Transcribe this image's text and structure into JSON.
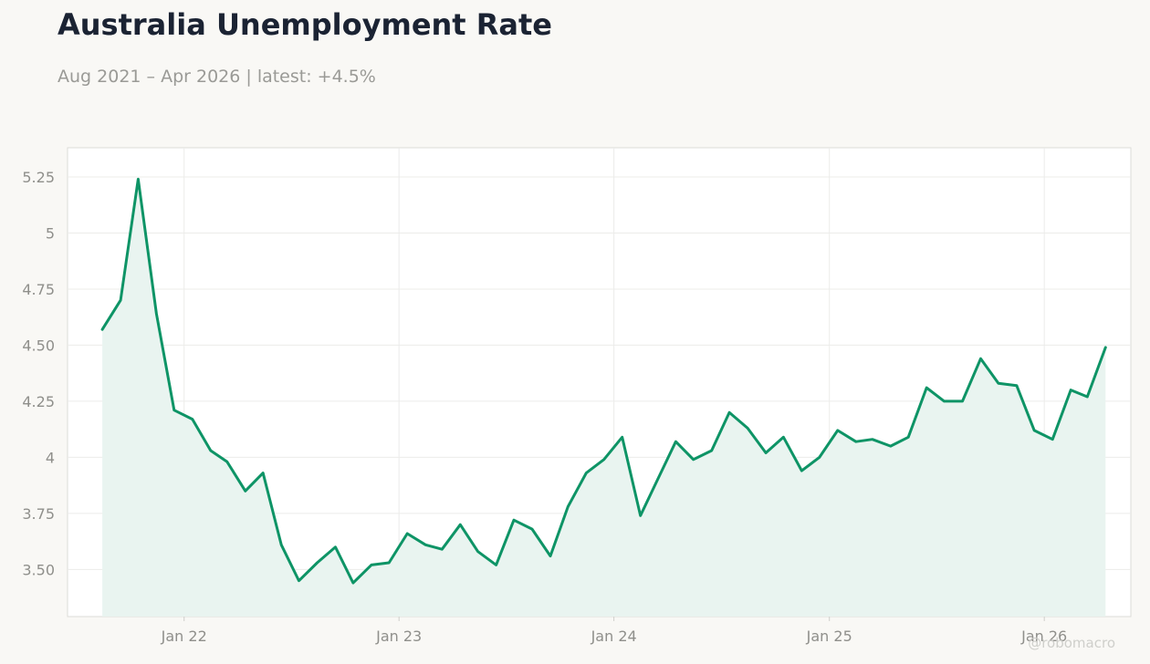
{
  "title": "Australia Unemployment Rate",
  "subtitle": "Aug 2021 – Apr 2026 | latest: +4.5%",
  "watermark": "@robomacro",
  "colors": {
    "line": "#0e9466",
    "area": "#e9f4f0",
    "background": "#f9f8f5",
    "plot_background": "#ffffff",
    "title": "#1b2333",
    "muted_text": "#9a9a96",
    "grid": "#ececea"
  },
  "chart_data": {
    "type": "area",
    "title": "Australia Unemployment Rate",
    "xlabel": "",
    "ylabel": "",
    "grid": true,
    "legend": "none",
    "ylim": [
      3.29,
      5.38
    ],
    "xlim": [
      "2021-06-17",
      "2026-05-28"
    ],
    "y_ticks": [
      3.5,
      3.75,
      4,
      4.25,
      4.5,
      4.75,
      5,
      5.25
    ],
    "y_tick_labels": [
      "3.50",
      "3.75",
      "4",
      "4.25",
      "4.50",
      "4.75",
      "5",
      "5.25"
    ],
    "x_ticks": [
      "2022-01-01",
      "2023-01-01",
      "2024-01-01",
      "2025-01-01",
      "2026-01-01"
    ],
    "x_tick_labels": [
      "Jan 22",
      "Jan 23",
      "Jan 24",
      "Jan 25",
      "Jan 26"
    ],
    "series": [
      {
        "x": [
          "2021-08",
          "2021-09",
          "2021-10",
          "2021-11",
          "2021-12",
          "2022-01",
          "2022-02",
          "2022-03",
          "2022-04",
          "2022-05",
          "2022-06",
          "2022-07",
          "2022-08",
          "2022-09",
          "2022-10",
          "2022-11",
          "2022-12",
          "2023-01",
          "2023-02",
          "2023-03",
          "2023-04",
          "2023-05",
          "2023-06",
          "2023-07",
          "2023-08",
          "2023-09",
          "2023-10",
          "2023-11",
          "2023-12",
          "2024-01",
          "2024-02",
          "2024-03",
          "2024-04",
          "2024-05",
          "2024-06",
          "2024-07",
          "2024-08",
          "2024-09",
          "2024-10",
          "2024-11",
          "2024-12",
          "2025-01",
          "2025-02",
          "2025-03",
          "2025-04",
          "2025-05",
          "2025-06",
          "2025-07",
          "2025-08",
          "2025-09",
          "2025-10",
          "2025-11",
          "2025-12",
          "2026-01",
          "2026-02",
          "2026-03",
          "2026-04"
        ],
        "values": [
          4.57,
          4.7,
          5.24,
          4.64,
          4.21,
          4.17,
          4.03,
          3.98,
          3.85,
          3.93,
          3.61,
          3.45,
          3.53,
          3.6,
          3.44,
          3.52,
          3.53,
          3.66,
          3.61,
          3.59,
          3.7,
          3.58,
          3.52,
          3.72,
          3.68,
          3.56,
          3.78,
          3.93,
          3.99,
          4.09,
          3.74,
          3.9,
          4.07,
          3.99,
          4.03,
          4.2,
          4.13,
          4.02,
          4.09,
          3.94,
          4.0,
          4.12,
          4.07,
          4.08,
          4.05,
          4.09,
          4.31,
          4.25,
          4.25,
          4.44,
          4.33,
          4.32,
          4.12,
          4.08,
          4.3,
          4.27,
          4.49
        ]
      }
    ]
  }
}
